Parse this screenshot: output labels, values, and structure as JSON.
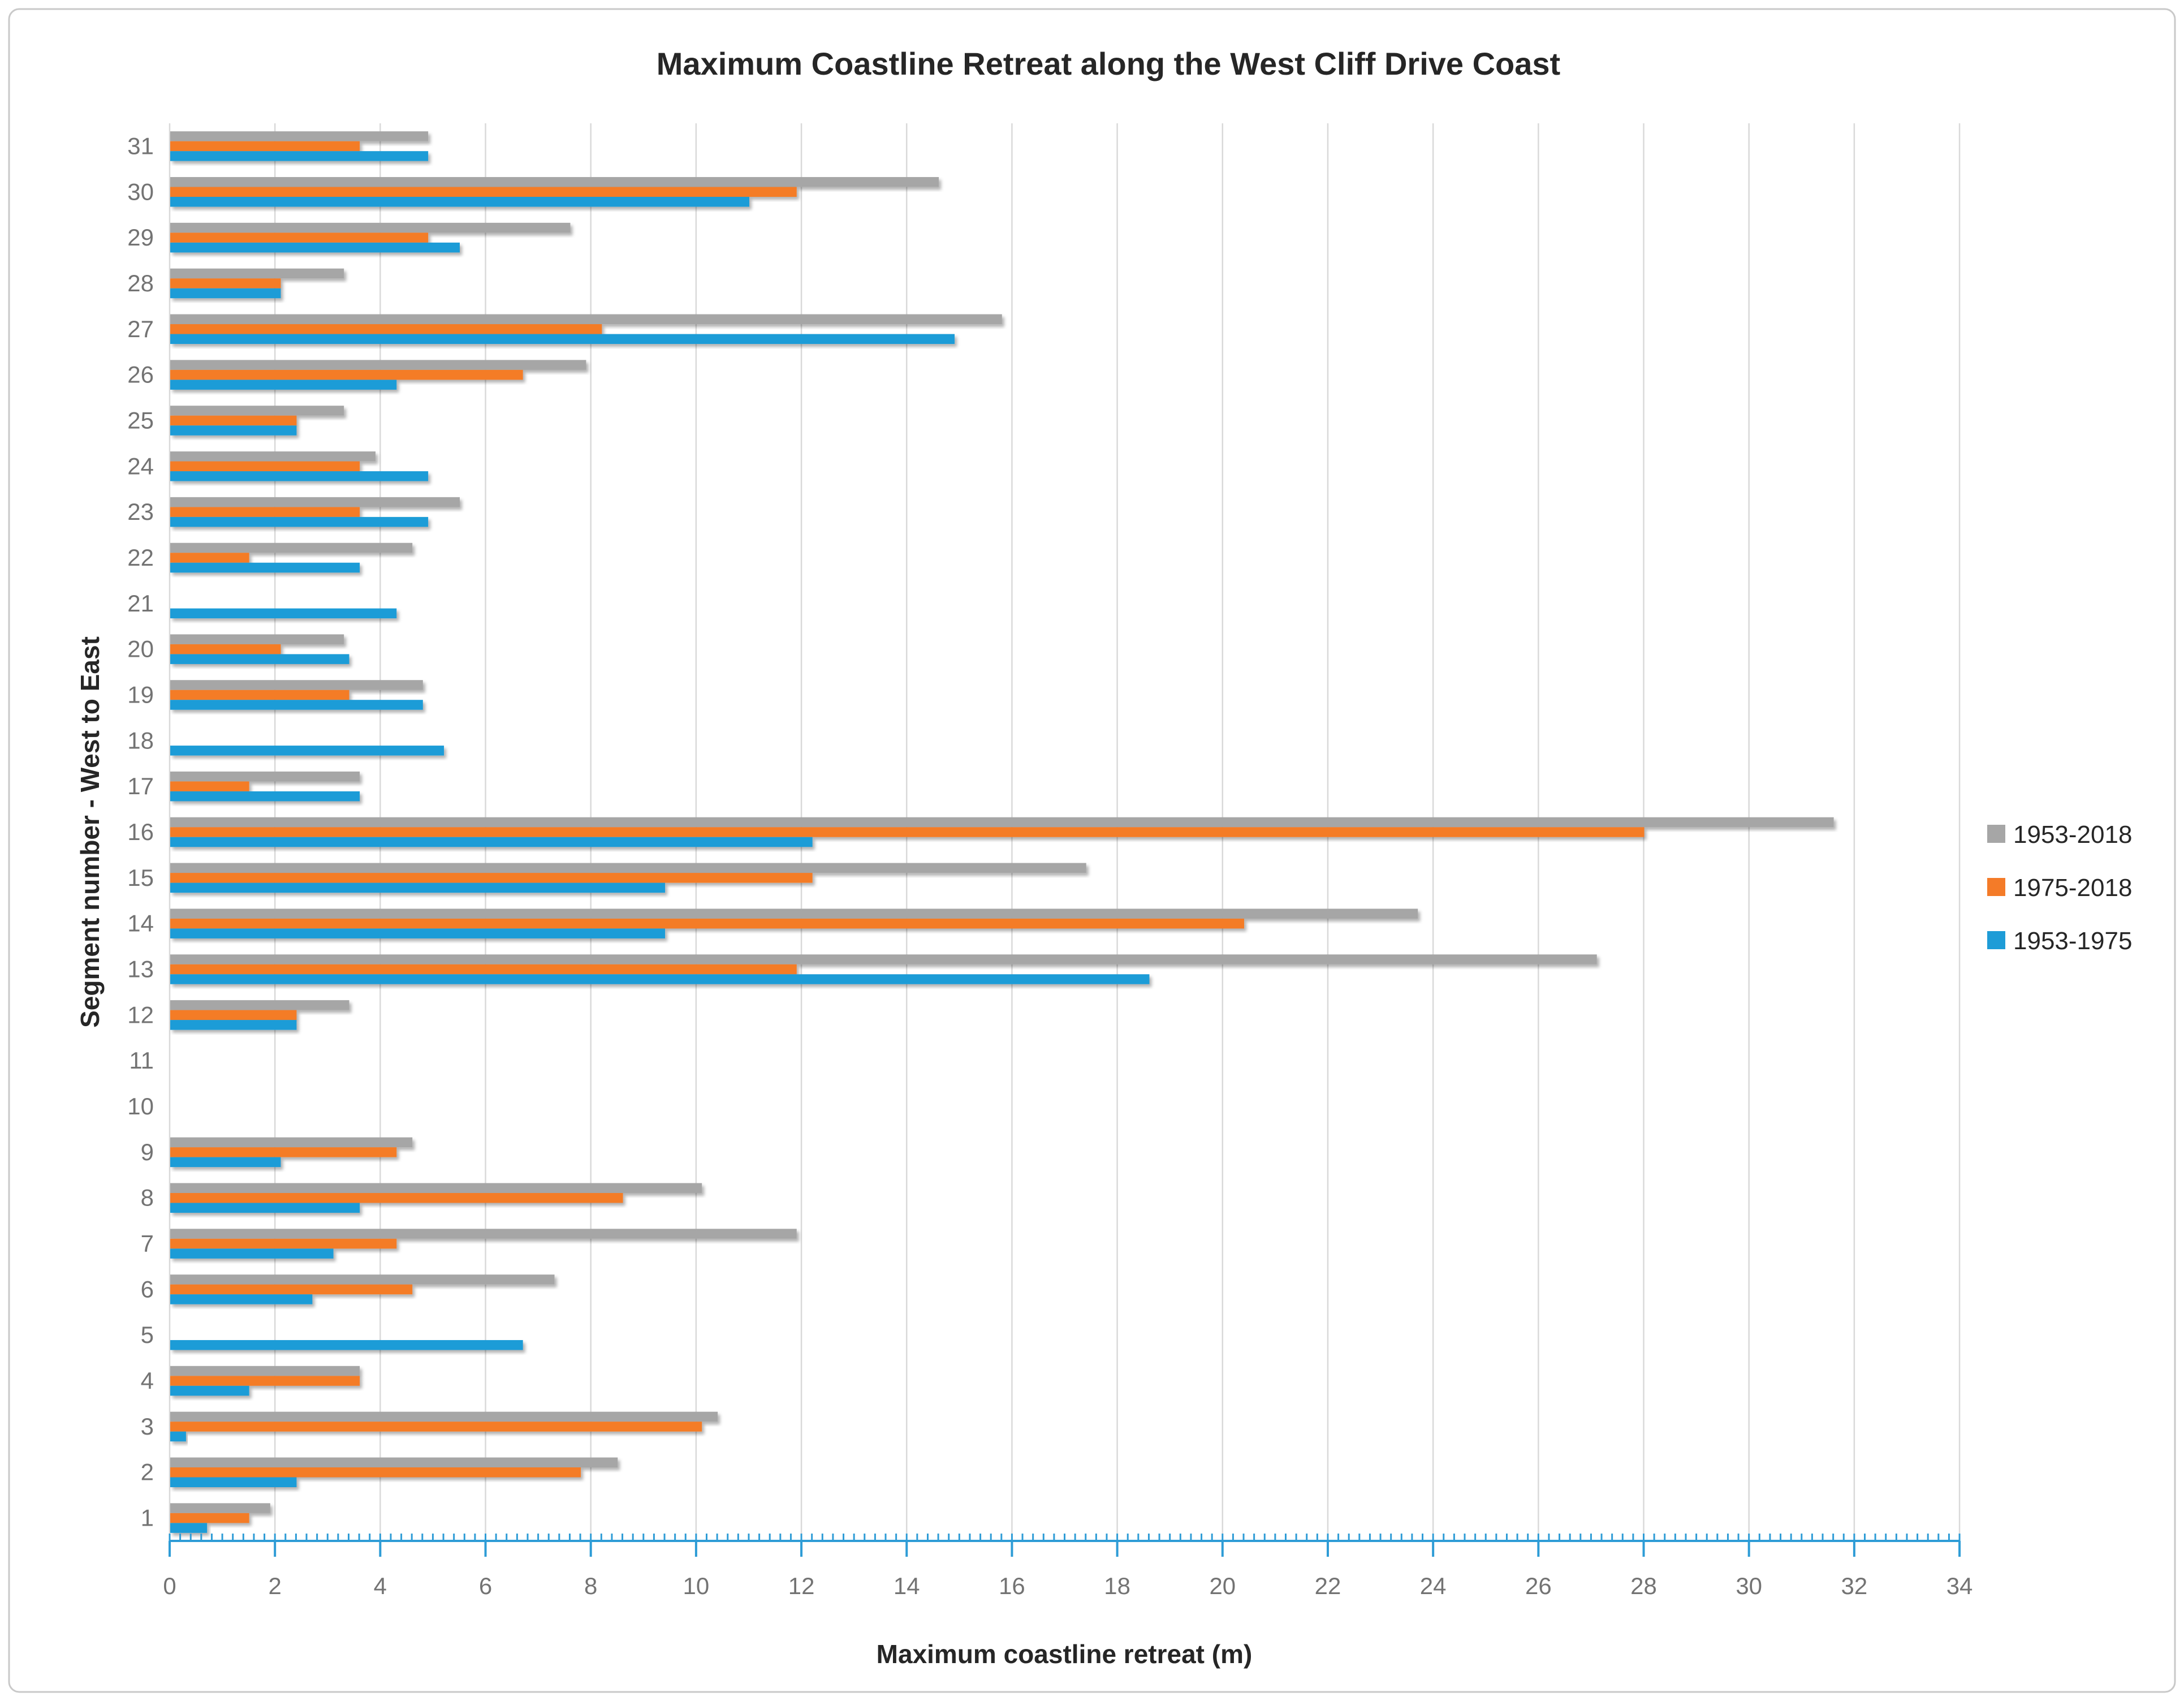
{
  "chart_data": {
    "type": "bar",
    "orientation": "horizontal",
    "title": "Maximum Coastline Retreat along the West Cliff Drive Coast",
    "xlabel": "Maximum coastline retreat (m)",
    "ylabel": "Segment number - West to East",
    "categories": [
      1,
      2,
      3,
      4,
      5,
      6,
      7,
      8,
      9,
      10,
      11,
      12,
      13,
      14,
      15,
      16,
      17,
      18,
      19,
      20,
      21,
      22,
      23,
      24,
      25,
      26,
      27,
      28,
      29,
      30,
      31
    ],
    "series": [
      {
        "name": "1953-2018",
        "color": "#a6a6a6",
        "values": [
          1.9,
          8.5,
          10.4,
          3.6,
          0,
          7.3,
          11.9,
          10.1,
          4.6,
          0,
          0,
          3.4,
          27.1,
          23.7,
          17.4,
          31.6,
          3.6,
          0,
          4.8,
          3.3,
          0,
          4.6,
          5.5,
          3.9,
          3.3,
          7.9,
          15.8,
          3.3,
          7.6,
          14.6,
          4.9
        ]
      },
      {
        "name": "1975-2018",
        "color": "#f47b28",
        "values": [
          1.5,
          7.8,
          10.1,
          3.6,
          0,
          4.6,
          4.3,
          8.6,
          4.3,
          0,
          0,
          2.4,
          11.9,
          20.4,
          12.2,
          28,
          1.5,
          0,
          3.4,
          2.1,
          0,
          1.5,
          3.6,
          3.6,
          2.4,
          6.7,
          8.2,
          2.1,
          4.9,
          11.9,
          3.6
        ]
      },
      {
        "name": "1953-1975",
        "color": "#1e9cd7",
        "values": [
          0.7,
          2.4,
          0.3,
          1.5,
          6.7,
          2.7,
          3.1,
          3.6,
          2.1,
          0,
          0,
          2.4,
          18.6,
          9.4,
          9.4,
          12.2,
          3.6,
          5.2,
          4.8,
          3.4,
          4.3,
          3.6,
          4.9,
          4.9,
          2.4,
          4.3,
          14.9,
          2.1,
          5.5,
          11,
          4.9
        ]
      }
    ],
    "xlim": [
      0,
      34
    ],
    "x_tick_step": 2,
    "x_minor_tick_step": 0.2,
    "grid": true,
    "legend_position": "right",
    "colors": {
      "gridline": "#d9d9d9",
      "axis_line": "#2e9cd6",
      "tick_label": "#737373",
      "title_text": "#262626",
      "legend_text": "#262626",
      "border": "#c9c9c9"
    }
  }
}
